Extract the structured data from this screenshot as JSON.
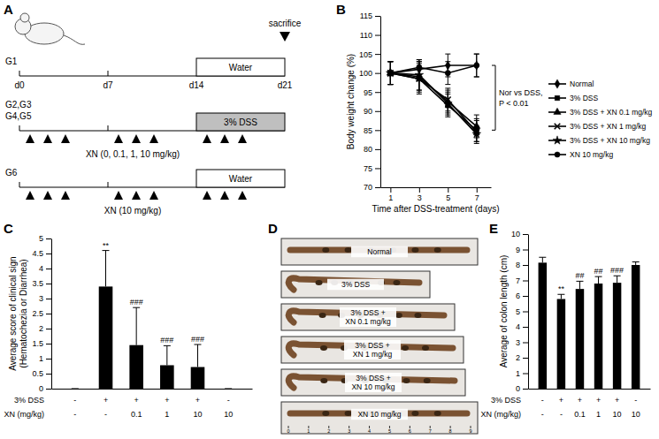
{
  "diagram": {
    "panel": "A",
    "sacrifice_label": "sacrifice",
    "days": [
      "d0",
      "d7",
      "d14",
      "d21"
    ],
    "rows": [
      {
        "groups": [
          "G1"
        ],
        "box": "Water",
        "box_color": "#ffffff",
        "dosing": null
      },
      {
        "groups": [
          "G2,G3",
          "G4,G5"
        ],
        "box": "3% DSS",
        "box_color": "#bfbfbf",
        "dosing": "XN (0, 0.1, 1, 10 mg/kg)"
      },
      {
        "groups": [
          "G6"
        ],
        "box": "Water",
        "box_color": "#ffffff",
        "dosing": "XN (10 mg/kg)"
      }
    ]
  },
  "image_panel": {
    "panel": "D",
    "labels": [
      [
        "Normal"
      ],
      [
        "3% DSS"
      ],
      [
        "3% DSS +",
        "XN 0.1 mg/kg"
      ],
      [
        "3% DSS +",
        "XN 1 mg/kg"
      ],
      [
        "3% DSS +",
        "XN 10 mg/kg"
      ],
      [
        "XN 10 mg/kg"
      ]
    ],
    "ruler_ticks": [
      0,
      1,
      2,
      3,
      4,
      5,
      6,
      7,
      8,
      9
    ]
  },
  "chart_data": [
    {
      "panel": "B",
      "type": "line",
      "x_label": "Time after DSS-treatment (days)",
      "y_label": "Body weight change (%)",
      "x": [
        1,
        3,
        5,
        7
      ],
      "xlim": [
        0.3,
        8
      ],
      "xticks": [
        1,
        3,
        5,
        7
      ],
      "ylim": [
        70,
        115
      ],
      "yticks": [
        70,
        75,
        80,
        85,
        90,
        95,
        100,
        105,
        110,
        115
      ],
      "legend": "right",
      "annotation": [
        "Nor vs DSS,",
        "P < 0.01"
      ],
      "series": [
        {
          "name": "Normal",
          "color": "#000000",
          "marker": "diamond",
          "values": [
            100,
            101,
            102,
            102
          ],
          "errors": [
            3,
            2,
            3,
            3
          ]
        },
        {
          "name": "3% DSS",
          "color": "#000000",
          "marker": "square",
          "values": [
            100,
            98.5,
            91.5,
            85
          ],
          "errors": [
            3,
            3,
            3,
            3
          ]
        },
        {
          "name": "3% DSS + XN 0.1 mg/kg",
          "color": "#000000",
          "marker": "triangle",
          "values": [
            100,
            99,
            92.5,
            86
          ],
          "errors": [
            3,
            4,
            3,
            3
          ]
        },
        {
          "name": "3% DSS + XN 1 mg/kg",
          "color": "#000000",
          "marker": "x",
          "values": [
            100,
            98.5,
            93,
            84.5
          ],
          "errors": [
            3,
            4,
            3,
            3
          ]
        },
        {
          "name": "3% DSS + XN 10 mg/kg",
          "color": "#000000",
          "marker": "star",
          "values": [
            100,
            99.5,
            92,
            84
          ],
          "errors": [
            3,
            4,
            3,
            2
          ]
        },
        {
          "name": "XN 10 mg/kg",
          "color": "#000000",
          "marker": "circle",
          "values": [
            100,
            101.5,
            100,
            102
          ],
          "errors": [
            3,
            2,
            3,
            3
          ]
        }
      ]
    },
    {
      "panel": "C",
      "type": "bar",
      "y_label": "Average score of clinical sign",
      "y_label_2": "(Hematochezia or Diarrhea)",
      "categories": [
        null,
        null,
        null,
        null,
        null,
        null
      ],
      "values": [
        0,
        3.4,
        1.45,
        0.78,
        0.72,
        0
      ],
      "errors": [
        0,
        1.2,
        1.25,
        0.65,
        0.75,
        0
      ],
      "annotations": [
        null,
        "**",
        "###",
        "###",
        "###",
        null
      ],
      "condition_rows": [
        {
          "label": "3% DSS",
          "values": [
            "-",
            "+",
            "+",
            "+",
            "+",
            "-"
          ]
        },
        {
          "label": "XN (mg/kg)",
          "values": [
            "-",
            "-",
            "0.1",
            "1",
            "10",
            "10"
          ]
        }
      ],
      "color": "#000000",
      "ylim": [
        0,
        5
      ],
      "yticks": [
        0,
        0.5,
        1,
        1.5,
        2,
        2.5,
        3,
        3.5,
        4,
        4.5,
        5
      ]
    },
    {
      "panel": "E",
      "type": "bar",
      "y_label": "Average of colon length (cm)",
      "categories": [
        null,
        null,
        null,
        null,
        null,
        null
      ],
      "values": [
        8.15,
        5.8,
        6.45,
        6.8,
        6.85,
        8.0
      ],
      "errors": [
        0.35,
        0.3,
        0.5,
        0.45,
        0.45,
        0.2
      ],
      "annotations": [
        null,
        "**",
        "##",
        "##",
        "###",
        null
      ],
      "condition_rows": [
        {
          "label": "3% DSS",
          "values": [
            "-",
            "+",
            "+",
            "+",
            "+",
            "-"
          ]
        },
        {
          "label": "XN (mg/kg)",
          "values": [
            "-",
            "-",
            "0.1",
            "1",
            "10",
            "10"
          ]
        }
      ],
      "color": "#000000",
      "ylim": [
        0,
        10
      ],
      "yticks": [
        0,
        1,
        2,
        3,
        4,
        5,
        6,
        7,
        8,
        9,
        10
      ]
    }
  ]
}
